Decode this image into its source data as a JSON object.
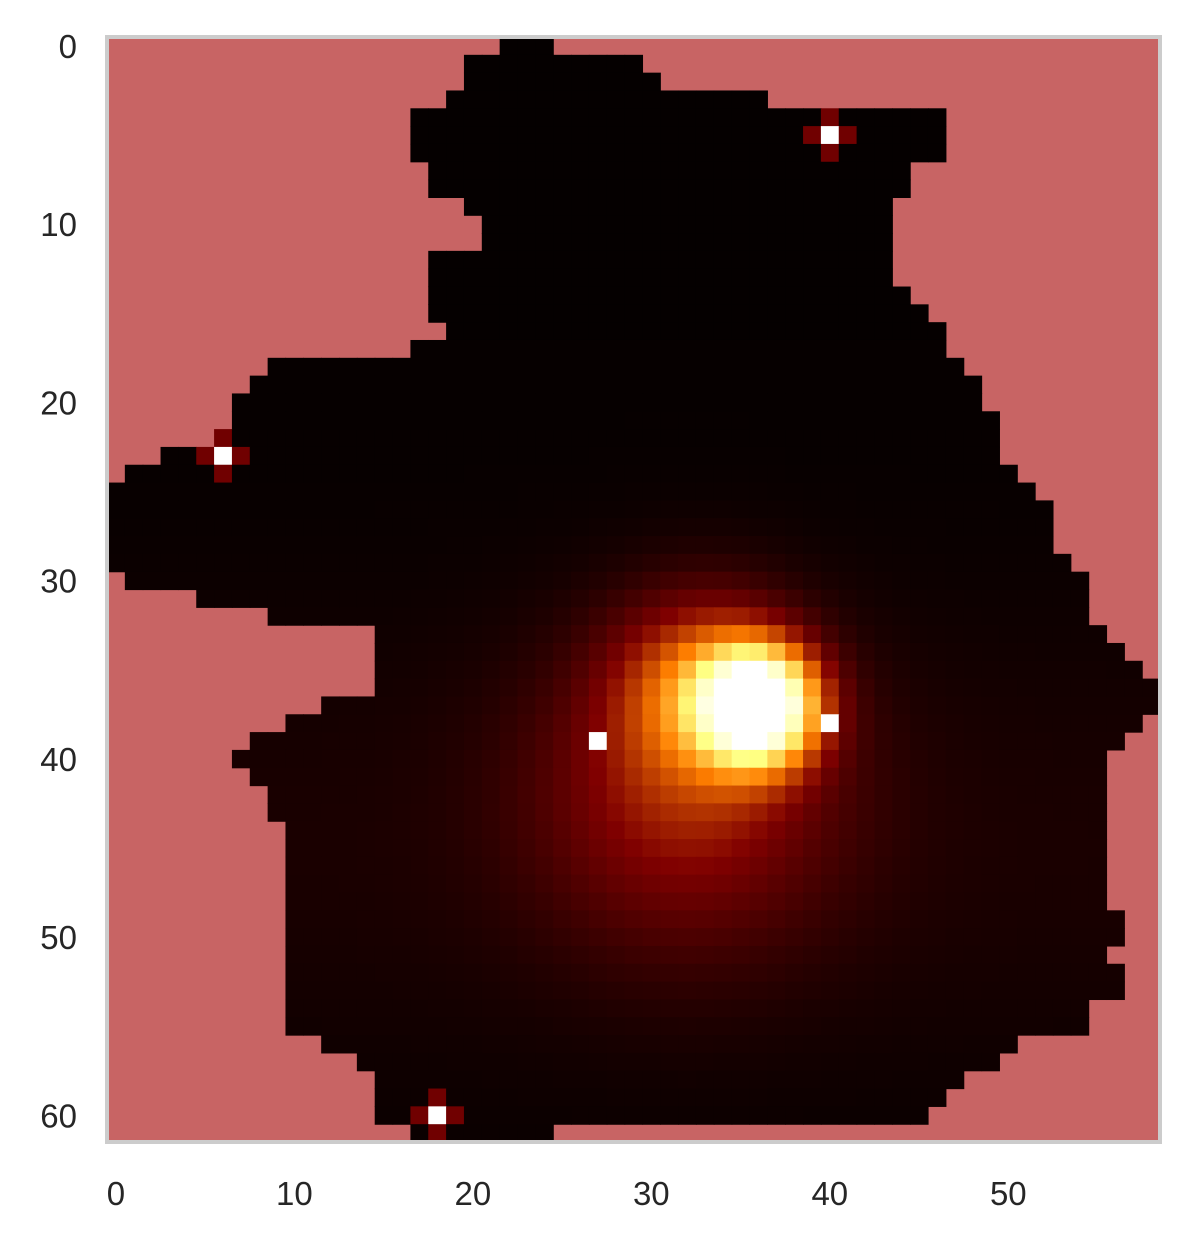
{
  "chart_data": {
    "type": "heatmap",
    "title": "",
    "xlabel": "",
    "ylabel": "",
    "grid": false,
    "legend": "none",
    "colormap": "afmhot",
    "nan_color": "#c86464",
    "frame_color": "#cccccc",
    "shape": {
      "rows": 62,
      "cols": 59
    },
    "xlim": [
      -0.5,
      58.5
    ],
    "ylim": [
      61.5,
      -0.5
    ],
    "x_ticks": [
      0,
      10,
      20,
      30,
      40,
      50
    ],
    "y_ticks": [
      0,
      10,
      20,
      30,
      40,
      50,
      60
    ],
    "x_tick_labels": [
      "0",
      "10",
      "20",
      "30",
      "40",
      "50"
    ],
    "y_tick_labels": [
      "0",
      "10",
      "20",
      "30",
      "40",
      "50",
      "60"
    ],
    "value_range": [
      0,
      1
    ],
    "hotspots": [
      {
        "row": 37,
        "col": 36,
        "peak": 1.0,
        "spread": 2.2
      },
      {
        "row": 36,
        "col": 33,
        "peak": 0.35,
        "spread": 3.5
      },
      {
        "row": 42,
        "col": 32,
        "peak": 0.25,
        "spread": 6.0
      }
    ],
    "bright_cells": [
      {
        "row": 5,
        "col": 40,
        "value": 1.0
      },
      {
        "row": 23,
        "col": 6,
        "value": 1.0
      },
      {
        "row": 39,
        "col": 27,
        "value": 1.0
      },
      {
        "row": 38,
        "col": 40,
        "value": 1.0
      },
      {
        "row": 60,
        "col": 18,
        "value": 1.0
      }
    ],
    "mask_row_spans": [
      [
        22,
        24
      ],
      [
        20,
        29
      ],
      [
        20,
        30
      ],
      [
        19,
        36
      ],
      [
        17,
        46
      ],
      [
        17,
        46
      ],
      [
        17,
        46
      ],
      [
        18,
        44
      ],
      [
        18,
        44
      ],
      [
        20,
        43
      ],
      [
        21,
        43
      ],
      [
        21,
        43
      ],
      [
        18,
        43
      ],
      [
        18,
        43
      ],
      [
        18,
        44
      ],
      [
        18,
        45
      ],
      [
        19,
        46
      ],
      [
        17,
        46
      ],
      [
        9,
        47
      ],
      [
        8,
        48
      ],
      [
        7,
        48
      ],
      [
        7,
        49
      ],
      [
        6,
        49
      ],
      [
        3,
        49
      ],
      [
        1,
        50
      ],
      [
        0,
        51
      ],
      [
        0,
        52
      ],
      [
        0,
        52
      ],
      [
        0,
        52
      ],
      [
        0,
        53
      ],
      [
        1,
        54
      ],
      [
        5,
        54
      ],
      [
        9,
        54
      ],
      [
        15,
        55
      ],
      [
        15,
        56
      ],
      [
        15,
        57
      ],
      [
        15,
        58
      ],
      [
        12,
        58
      ],
      [
        10,
        57
      ],
      [
        8,
        56
      ],
      [
        7,
        55
      ],
      [
        8,
        55
      ],
      [
        9,
        55
      ],
      [
        9,
        55
      ],
      [
        10,
        55
      ],
      [
        10,
        55
      ],
      [
        10,
        55
      ],
      [
        10,
        55
      ],
      [
        10,
        55
      ],
      [
        10,
        56
      ],
      [
        10,
        56
      ],
      [
        10,
        55
      ],
      [
        10,
        56
      ],
      [
        10,
        56
      ],
      [
        10,
        54
      ],
      [
        10,
        54
      ],
      [
        12,
        50
      ],
      [
        14,
        49
      ],
      [
        15,
        47
      ],
      [
        15,
        46
      ],
      [
        15,
        45
      ],
      [
        17,
        24
      ]
    ]
  }
}
